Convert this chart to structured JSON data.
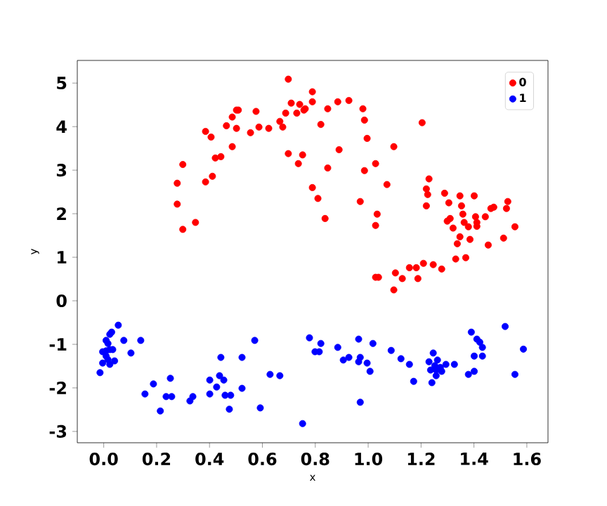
{
  "chart_data": {
    "type": "scatter",
    "xlabel": "x",
    "ylabel": "y",
    "xlim": [
      -0.1,
      1.68
    ],
    "ylim": [
      -3.26,
      5.52
    ],
    "xticks": [
      {
        "value": 0,
        "label": "0.0"
      },
      {
        "value": 0.2,
        "label": "0.2"
      },
      {
        "value": 0.4,
        "label": "0.4"
      },
      {
        "value": 0.6,
        "label": "0.6"
      },
      {
        "value": 0.8,
        "label": "0.8"
      },
      {
        "value": 1,
        "label": "1.0"
      },
      {
        "value": 1.2,
        "label": "1.2"
      },
      {
        "value": 1.4,
        "label": "1.4"
      },
      {
        "value": 1.6,
        "label": "1.6"
      }
    ],
    "yticks": [
      -3,
      -2,
      -1,
      0,
      1,
      2,
      3,
      4,
      5
    ],
    "legend": "top right",
    "marker": "circle",
    "grid": false,
    "series": [
      {
        "name": "0",
        "color": "#ff0000",
        "x": [
          0.698,
          0.299,
          0.278,
          0.278,
          0.299,
          0.347,
          0.385,
          0.406,
          0.385,
          0.411,
          0.422,
          0.443,
          0.464,
          0.486,
          0.502,
          0.509,
          0.502,
          0.486,
          0.555,
          0.576,
          0.587,
          0.624,
          0.666,
          0.677,
          0.688,
          0.709,
          0.73,
          0.741,
          0.757,
          0.762,
          0.789,
          0.789,
          0.698,
          0.752,
          0.736,
          0.789,
          0.847,
          0.885,
          0.927,
          0.98,
          0.986,
          0.821,
          0.996,
          1.204,
          0.89,
          1.097,
          1.028,
          0.847,
          0.986,
          1.071,
          0.81,
          0.97,
          0.837,
          1.034,
          1.028,
          1.23,
          1.22,
          1.225,
          1.22,
          1.289,
          1.305,
          1.347,
          1.353,
          1.401,
          1.299,
          1.31,
          1.321,
          1.358,
          1.363,
          1.379,
          1.406,
          1.411,
          1.411,
          1.443,
          1.464,
          1.475,
          1.523,
          1.528,
          1.555,
          1.512,
          1.454,
          1.385,
          1.347,
          1.337,
          1.369,
          1.331,
          1.278,
          1.246,
          1.209,
          1.182,
          1.156,
          1.103,
          1.129,
          1.188,
          1.028,
          1.039,
          1.097
        ],
        "values": [
          5.09,
          3.13,
          2.7,
          2.22,
          1.64,
          1.8,
          3.89,
          3.76,
          2.73,
          2.86,
          3.28,
          3.31,
          4.02,
          4.22,
          4.38,
          4.38,
          3.96,
          3.54,
          3.86,
          4.35,
          3.99,
          3.96,
          4.12,
          3.99,
          4.31,
          4.54,
          4.31,
          4.51,
          4.38,
          4.41,
          4.8,
          4.57,
          3.38,
          3.35,
          3.15,
          2.6,
          4.41,
          4.57,
          4.6,
          4.41,
          4.15,
          4.05,
          3.73,
          4.09,
          3.47,
          3.54,
          3.15,
          3.05,
          2.99,
          2.67,
          2.35,
          2.28,
          1.89,
          1.99,
          1.73,
          2.8,
          2.57,
          2.44,
          2.18,
          2.47,
          2.25,
          2.41,
          2.18,
          2.41,
          1.83,
          1.89,
          1.67,
          1.99,
          1.8,
          1.7,
          1.93,
          1.8,
          1.71,
          1.93,
          2.12,
          2.15,
          2.12,
          2.28,
          1.7,
          1.44,
          1.28,
          1.41,
          1.47,
          1.31,
          0.99,
          0.96,
          0.73,
          0.83,
          0.86,
          0.76,
          0.76,
          0.64,
          0.51,
          0.51,
          0.54,
          0.54,
          0.25
        ]
      },
      {
        "name": "1",
        "color": "#0000ff",
        "x": [
          0.055,
          0.03,
          0.023,
          0.009,
          0.016,
          -0.004,
          0.009,
          0.023,
          0.034,
          0.009,
          -0.004,
          0.023,
          0.041,
          0.016,
          -0.014,
          0.076,
          0.103,
          0.14,
          0.188,
          0.156,
          0.252,
          0.236,
          0.257,
          0.214,
          0.326,
          0.337,
          0.401,
          0.401,
          0.427,
          0.438,
          0.454,
          0.443,
          0.459,
          0.48,
          0.475,
          0.523,
          0.523,
          0.571,
          0.592,
          0.629,
          0.666,
          0.752,
          0.778,
          0.799,
          0.815,
          0.821,
          0.885,
          0.906,
          0.927,
          0.964,
          0.97,
          0.964,
          0.996,
          1.007,
          1.018,
          0.97,
          1.087,
          1.124,
          1.156,
          1.172,
          1.246,
          1.23,
          1.262,
          1.252,
          1.236,
          1.257,
          1.273,
          1.278,
          1.257,
          1.241,
          1.294,
          1.326,
          1.39,
          1.411,
          1.422,
          1.432,
          1.401,
          1.432,
          1.401,
          1.379,
          1.518,
          1.587,
          1.555
        ],
        "values": [
          -0.56,
          -0.72,
          -0.77,
          -0.91,
          -0.98,
          -1.17,
          -1.15,
          -1.12,
          -1.12,
          -1.27,
          -1.43,
          -1.46,
          -1.38,
          -1.35,
          -1.65,
          -0.91,
          -1.2,
          -0.91,
          -1.91,
          -2.14,
          -1.78,
          -2.2,
          -2.2,
          -2.53,
          -2.3,
          -2.2,
          -1.82,
          -2.14,
          -1.98,
          -1.72,
          -1.82,
          -1.3,
          -2.17,
          -2.17,
          -2.49,
          -1.3,
          -2.01,
          -0.91,
          -2.46,
          -1.69,
          -1.72,
          -2.82,
          -0.85,
          -1.17,
          -1.17,
          -0.98,
          -1.07,
          -1.36,
          -1.3,
          -0.88,
          -1.3,
          -1.4,
          -1.43,
          -1.62,
          -0.98,
          -2.33,
          -1.14,
          -1.33,
          -1.46,
          -1.85,
          -1.2,
          -1.4,
          -1.36,
          -1.49,
          -1.59,
          -1.59,
          -1.53,
          -1.62,
          -1.72,
          -1.88,
          -1.46,
          -1.46,
          -0.72,
          -0.88,
          -0.95,
          -1.07,
          -1.27,
          -1.27,
          -1.62,
          -1.69,
          -0.59,
          -1.11,
          -1.69
        ]
      }
    ]
  }
}
